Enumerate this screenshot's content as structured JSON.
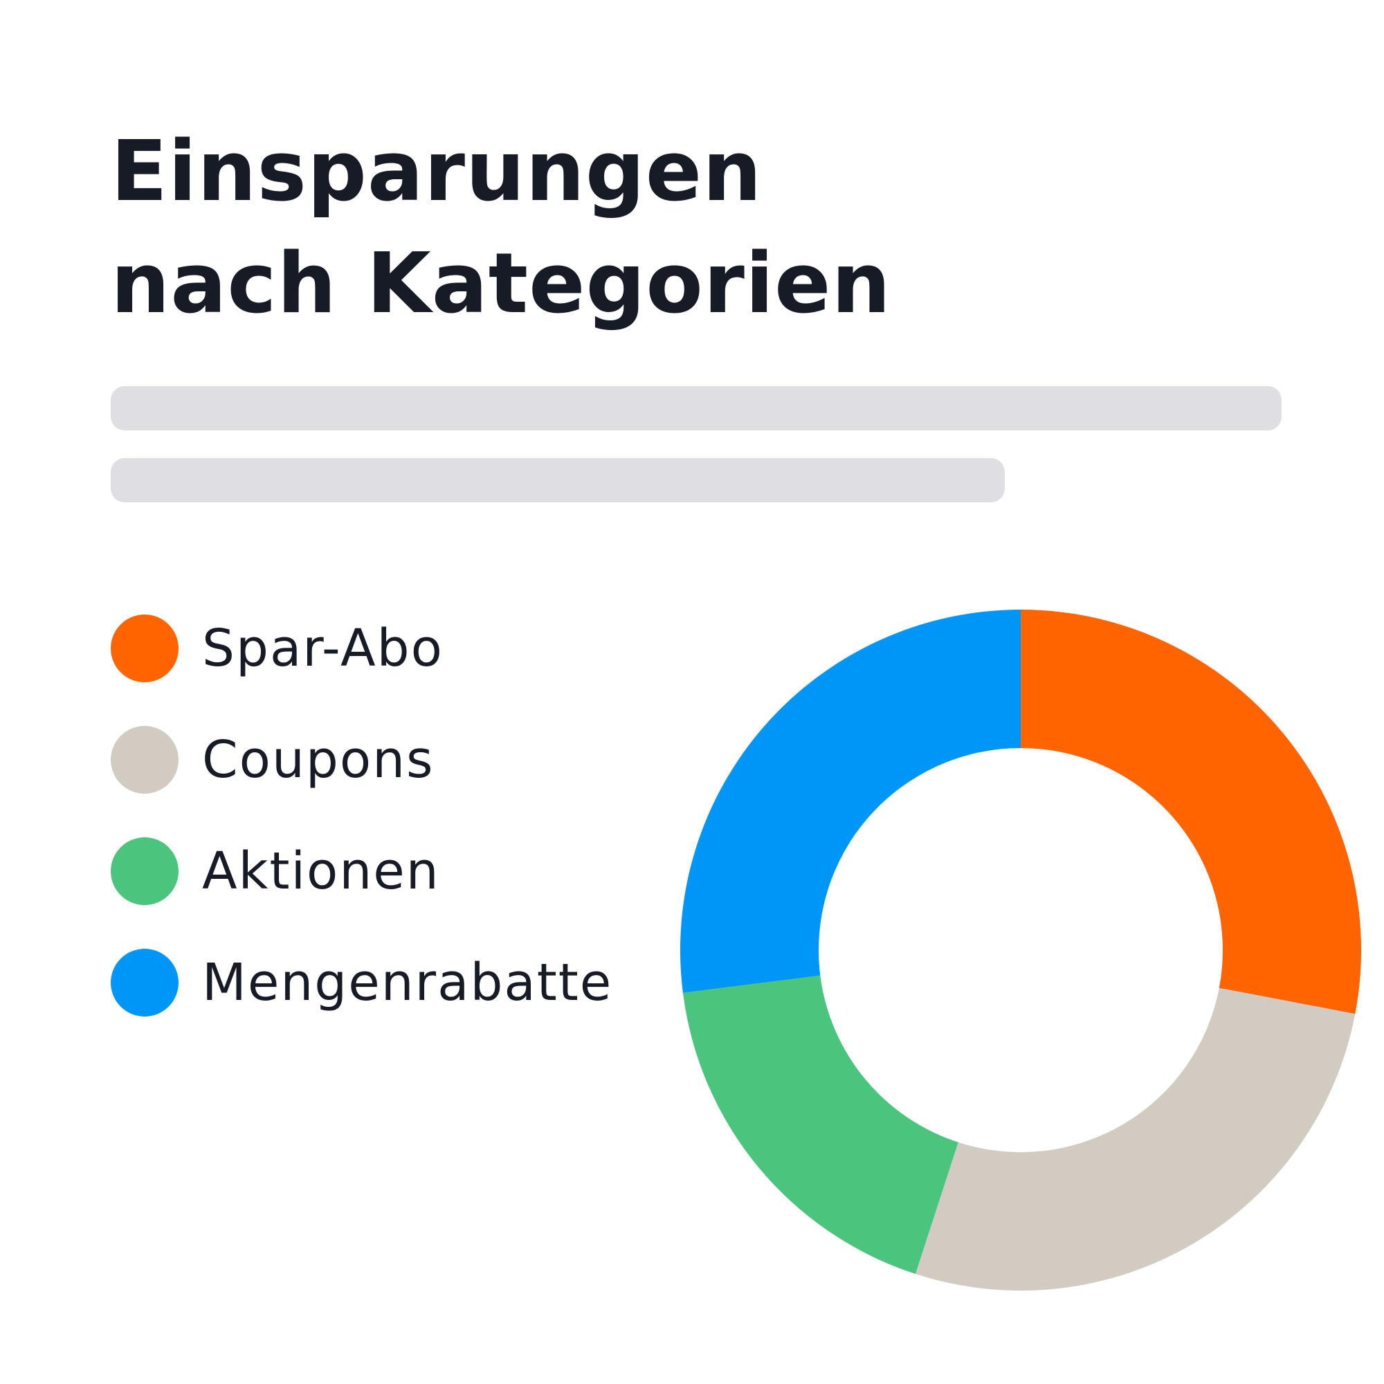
{
  "title": "Einsparungen nach Kategorien",
  "chart_data": {
    "type": "pie",
    "variant": "donut",
    "title": "Einsparungen nach Kategorien",
    "start_angle_deg": 0,
    "direction": "clockwise",
    "categories": [
      "Spar-Abo",
      "Coupons",
      "Aktionen",
      "Mengenrabatte"
    ],
    "values": [
      28,
      27,
      18,
      27
    ],
    "unit": "%",
    "colors": [
      "#ff6400",
      "#d2cbc2",
      "#4bc47e",
      "#0096f7"
    ],
    "legend": {
      "position": "left",
      "items": [
        {
          "label": "Spar-Abo",
          "color": "#ff6400"
        },
        {
          "label": "Coupons",
          "color": "#d2cbc2"
        },
        {
          "label": "Aktionen",
          "color": "#4bc47e"
        },
        {
          "label": "Mengenrabatte",
          "color": "#0096f7"
        }
      ]
    }
  }
}
